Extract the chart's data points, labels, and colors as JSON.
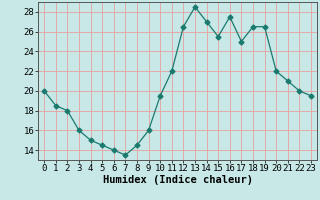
{
  "x": [
    0,
    1,
    2,
    3,
    4,
    5,
    6,
    7,
    8,
    9,
    10,
    11,
    12,
    13,
    14,
    15,
    16,
    17,
    18,
    19,
    20,
    21,
    22,
    23
  ],
  "y": [
    20,
    18.5,
    18,
    16,
    15,
    14.5,
    14,
    13.5,
    14.5,
    16,
    19.5,
    22,
    26.5,
    28.5,
    27,
    25.5,
    27.5,
    25,
    26.5,
    26.5,
    22,
    21,
    20,
    19.5
  ],
  "line_color": "#1a7a6e",
  "marker": "D",
  "marker_size": 2.5,
  "bg_color": "#c8e8e8",
  "grid_color_major": "#e8a0a0",
  "grid_color_minor": "#e8c8c8",
  "xlabel": "Humidex (Indice chaleur)",
  "ylabel_ticks": [
    14,
    16,
    18,
    20,
    22,
    24,
    26,
    28
  ],
  "xlim": [
    -0.5,
    23.5
  ],
  "ylim": [
    13.0,
    29.0
  ],
  "xlabel_fontsize": 7.5,
  "tick_fontsize": 6.5
}
